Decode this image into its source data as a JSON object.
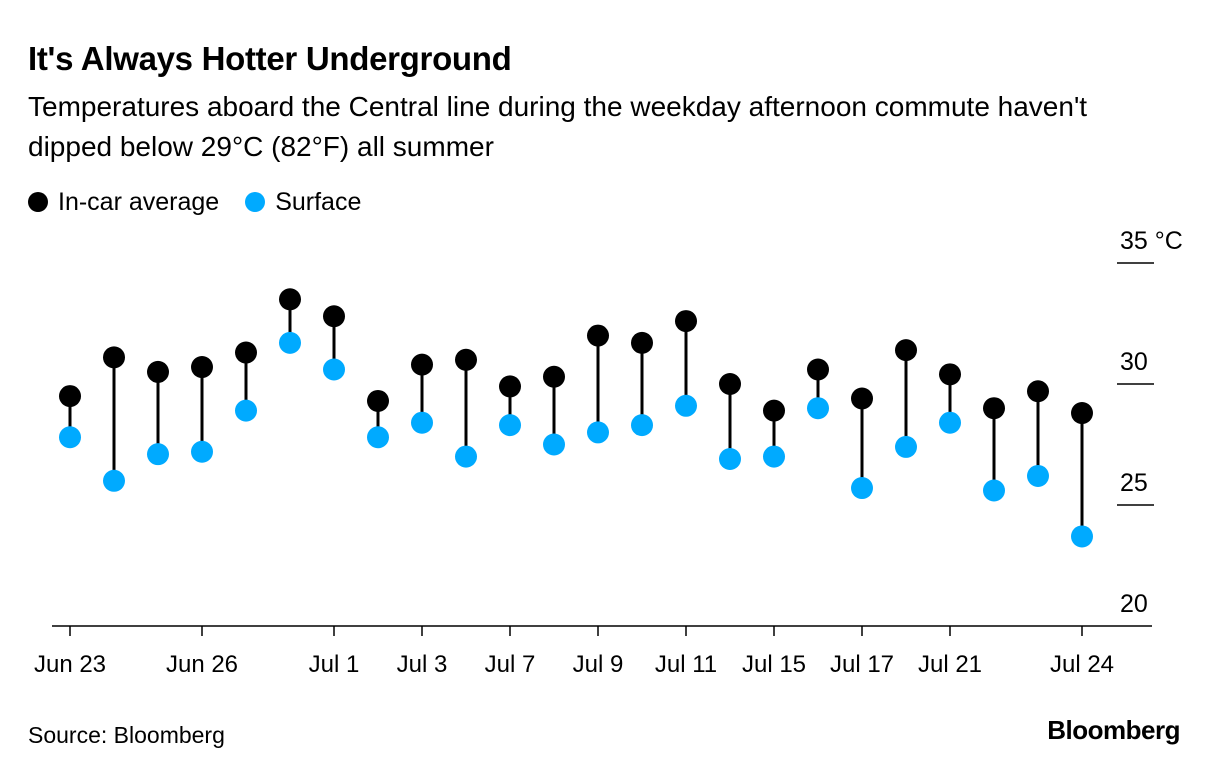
{
  "header": {
    "title": "It's Always Hotter Underground",
    "subtitle": "Temperatures aboard the Central line during the weekday afternoon commute haven't dipped below 29°C (82°F) all summer"
  },
  "legend": {
    "items": [
      {
        "label": "In-car average",
        "color": "#000000"
      },
      {
        "label": "Surface",
        "color": "#00aaff"
      }
    ]
  },
  "footer": {
    "source": "Source: Bloomberg",
    "logo": "Bloomberg"
  },
  "chart_data": {
    "type": "scatter",
    "subtype": "dumbbell",
    "title": "It's Always Hotter Underground",
    "y_unit": "°C",
    "ylim": [
      20,
      35
    ],
    "yticks": [
      {
        "value": 35,
        "label": "35 °C"
      },
      {
        "value": 30,
        "label": "30"
      },
      {
        "value": 25,
        "label": "25"
      },
      {
        "value": 20,
        "label": "20"
      }
    ],
    "x_tick_labels": [
      "Jun 23",
      "Jun 26",
      "Jul 1",
      "Jul 3",
      "Jul 7",
      "Jul 9",
      "Jul 11",
      "Jul 15",
      "Jul 17",
      "Jul 21",
      "Jul 24"
    ],
    "x_tick_indices": [
      0,
      3,
      6,
      8,
      10,
      12,
      14,
      16,
      18,
      20,
      23
    ],
    "x": [
      "Jun 23",
      "Jun 24",
      "Jun 25",
      "Jun 26",
      "Jun 27",
      "Jun 28",
      "Jul 1",
      "Jul 2",
      "Jul 3",
      "Jul 4",
      "Jul 7",
      "Jul 8",
      "Jul 9",
      "Jul 10",
      "Jul 11",
      "Jul 14",
      "Jul 15",
      "Jul 16",
      "Jul 17",
      "Jul 18",
      "Jul 21",
      "Jul 22",
      "Jul 23",
      "Jul 24"
    ],
    "series": [
      {
        "name": "In-car average",
        "color": "#000000",
        "values": [
          29.5,
          31.1,
          30.5,
          30.7,
          31.3,
          33.5,
          32.8,
          29.3,
          30.8,
          31.0,
          29.9,
          30.3,
          32.0,
          31.7,
          32.6,
          30.0,
          28.9,
          30.6,
          29.4,
          31.4,
          30.4,
          29.0,
          29.7,
          28.8
        ]
      },
      {
        "name": "Surface",
        "color": "#00aaff",
        "values": [
          27.8,
          26.0,
          27.1,
          27.2,
          28.9,
          31.7,
          30.6,
          27.8,
          28.4,
          27.0,
          28.3,
          27.5,
          28.0,
          28.3,
          29.1,
          26.9,
          27.0,
          29.0,
          25.7,
          27.4,
          28.4,
          25.6,
          26.2,
          23.7
        ]
      }
    ]
  }
}
